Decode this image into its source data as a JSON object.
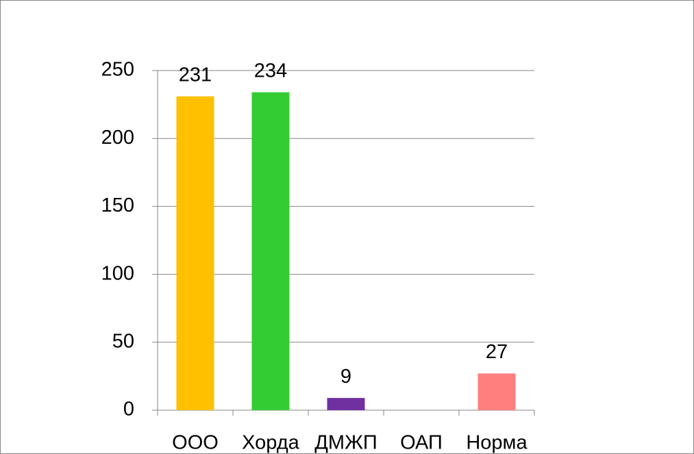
{
  "chart_data": {
    "type": "bar",
    "categories": [
      "ООО",
      "Хорда",
      "ДМЖП",
      "ОАП",
      "Норма"
    ],
    "values": [
      231,
      234,
      9,
      null,
      27
    ],
    "colors": [
      "#ffc000",
      "#33cc33",
      "#7030a0",
      "#888888",
      "#ff7f7f"
    ],
    "ylim": [
      0,
      250
    ],
    "yticks": [
      0,
      50,
      100,
      150,
      200,
      250
    ],
    "grid": true,
    "data_labels": true
  }
}
